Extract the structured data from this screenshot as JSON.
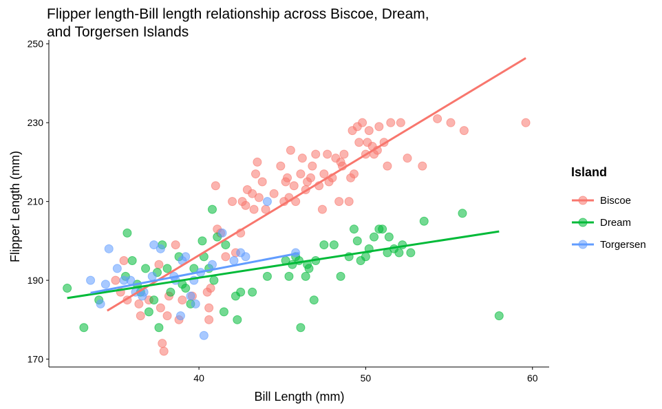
{
  "chart_data": {
    "type": "scatter",
    "title": "Flipper length-Bill length relationship across Biscoe, Dream,\n and Torgersen Islands",
    "xlabel": "Bill Length (mm)",
    "ylabel": "Flipper Length (mm)",
    "xlim": [
      31,
      61
    ],
    "ylim": [
      168,
      251
    ],
    "xticks": [
      40,
      50,
      60
    ],
    "yticks": [
      170,
      190,
      210,
      230,
      250
    ],
    "grid": false,
    "legend": {
      "title": "Island",
      "position": "right"
    },
    "series": [
      {
        "name": "Biscoe",
        "color": "#F8766D",
        "trend": [
          [
            34.5,
            182.3
          ],
          [
            59.6,
            246.4
          ]
        ],
        "points": [
          [
            35.0,
            190
          ],
          [
            35.3,
            187
          ],
          [
            35.5,
            195
          ],
          [
            35.7,
            185
          ],
          [
            36.4,
            184
          ],
          [
            36.5,
            181
          ],
          [
            37.0,
            185
          ],
          [
            37.6,
            194
          ],
          [
            37.7,
            183
          ],
          [
            37.8,
            174
          ],
          [
            37.9,
            172
          ],
          [
            38.1,
            181
          ],
          [
            38.2,
            186
          ],
          [
            38.6,
            199
          ],
          [
            38.8,
            180
          ],
          [
            39.0,
            185
          ],
          [
            39.6,
            186
          ],
          [
            40.5,
            187
          ],
          [
            40.6,
            183
          ],
          [
            40.6,
            180
          ],
          [
            40.7,
            188
          ],
          [
            41.0,
            214
          ],
          [
            41.1,
            203
          ],
          [
            41.3,
            202
          ],
          [
            41.6,
            196
          ],
          [
            42.0,
            210
          ],
          [
            42.2,
            197
          ],
          [
            42.5,
            202
          ],
          [
            42.6,
            210
          ],
          [
            42.8,
            209
          ],
          [
            42.9,
            213
          ],
          [
            43.2,
            212
          ],
          [
            43.3,
            208
          ],
          [
            43.5,
            220
          ],
          [
            43.4,
            217
          ],
          [
            43.6,
            211
          ],
          [
            43.8,
            215
          ],
          [
            44.0,
            208
          ],
          [
            44.5,
            212
          ],
          [
            44.9,
            219
          ],
          [
            45.1,
            210
          ],
          [
            45.2,
            215
          ],
          [
            45.3,
            216
          ],
          [
            45.4,
            211
          ],
          [
            45.5,
            223
          ],
          [
            45.7,
            214
          ],
          [
            45.8,
            210
          ],
          [
            46.1,
            217
          ],
          [
            46.2,
            221
          ],
          [
            46.4,
            213
          ],
          [
            46.5,
            215
          ],
          [
            46.7,
            216
          ],
          [
            46.8,
            219
          ],
          [
            47.0,
            222
          ],
          [
            47.2,
            214
          ],
          [
            47.4,
            208
          ],
          [
            47.5,
            217
          ],
          [
            47.7,
            222
          ],
          [
            47.8,
            215
          ],
          [
            48.0,
            216
          ],
          [
            48.2,
            221
          ],
          [
            48.4,
            210
          ],
          [
            48.5,
            220
          ],
          [
            48.6,
            219
          ],
          [
            48.7,
            222
          ],
          [
            49.0,
            210
          ],
          [
            49.1,
            216
          ],
          [
            49.2,
            228
          ],
          [
            49.3,
            217
          ],
          [
            49.5,
            229
          ],
          [
            49.6,
            225
          ],
          [
            49.8,
            230
          ],
          [
            50.0,
            222
          ],
          [
            50.1,
            225
          ],
          [
            50.2,
            228
          ],
          [
            50.4,
            224
          ],
          [
            50.5,
            222
          ],
          [
            50.7,
            223
          ],
          [
            50.8,
            229
          ],
          [
            51.1,
            225
          ],
          [
            51.3,
            219
          ],
          [
            51.5,
            230
          ],
          [
            52.1,
            230
          ],
          [
            52.5,
            221
          ],
          [
            53.4,
            219
          ],
          [
            54.3,
            231
          ],
          [
            55.1,
            230
          ],
          [
            55.9,
            228
          ],
          [
            59.6,
            230
          ]
        ]
      },
      {
        "name": "Dream",
        "color": "#00BA38",
        "trend": [
          [
            32.1,
            185.5
          ],
          [
            58.0,
            202.4
          ]
        ],
        "points": [
          [
            32.1,
            188
          ],
          [
            33.1,
            178
          ],
          [
            34.0,
            185
          ],
          [
            35.6,
            191
          ],
          [
            35.7,
            202
          ],
          [
            36.0,
            195
          ],
          [
            36.3,
            189
          ],
          [
            36.5,
            187
          ],
          [
            36.8,
            193
          ],
          [
            37.0,
            182
          ],
          [
            37.3,
            185
          ],
          [
            37.5,
            192
          ],
          [
            37.6,
            178
          ],
          [
            37.8,
            199
          ],
          [
            38.1,
            193
          ],
          [
            38.3,
            187
          ],
          [
            38.8,
            196
          ],
          [
            39.0,
            189
          ],
          [
            39.2,
            188
          ],
          [
            39.5,
            184
          ],
          [
            39.7,
            193
          ],
          [
            40.2,
            200
          ],
          [
            40.3,
            196
          ],
          [
            40.6,
            193
          ],
          [
            40.8,
            208
          ],
          [
            40.9,
            190
          ],
          [
            41.1,
            201
          ],
          [
            41.5,
            182
          ],
          [
            41.6,
            199
          ],
          [
            42.2,
            186
          ],
          [
            42.3,
            180
          ],
          [
            42.5,
            187
          ],
          [
            43.2,
            187
          ],
          [
            44.1,
            191
          ],
          [
            45.2,
            195
          ],
          [
            45.4,
            191
          ],
          [
            45.6,
            194
          ],
          [
            45.8,
            196
          ],
          [
            46.0,
            195
          ],
          [
            46.1,
            178
          ],
          [
            46.4,
            191
          ],
          [
            46.5,
            194
          ],
          [
            46.6,
            193
          ],
          [
            46.9,
            185
          ],
          [
            47.0,
            195
          ],
          [
            47.5,
            199
          ],
          [
            48.1,
            199
          ],
          [
            48.5,
            191
          ],
          [
            49.0,
            196
          ],
          [
            49.3,
            203
          ],
          [
            49.5,
            200
          ],
          [
            49.7,
            195
          ],
          [
            50.0,
            196
          ],
          [
            50.2,
            198
          ],
          [
            50.5,
            201
          ],
          [
            50.8,
            203
          ],
          [
            51.0,
            203
          ],
          [
            51.3,
            197
          ],
          [
            51.4,
            201
          ],
          [
            51.7,
            198
          ],
          [
            52.0,
            197
          ],
          [
            52.2,
            199
          ],
          [
            52.7,
            197
          ],
          [
            53.5,
            205
          ],
          [
            55.8,
            207
          ],
          [
            58.0,
            181
          ]
        ]
      },
      {
        "name": "Torgersen",
        "color": "#619CFF",
        "trend": [
          [
            33.5,
            186.8
          ],
          [
            46.0,
            196.9
          ]
        ],
        "points": [
          [
            33.5,
            190
          ],
          [
            34.1,
            184
          ],
          [
            34.4,
            189
          ],
          [
            34.6,
            198
          ],
          [
            35.1,
            193
          ],
          [
            35.5,
            190
          ],
          [
            35.9,
            190
          ],
          [
            36.2,
            187
          ],
          [
            36.6,
            186
          ],
          [
            36.7,
            187
          ],
          [
            37.2,
            191
          ],
          [
            37.3,
            199
          ],
          [
            37.7,
            198
          ],
          [
            38.5,
            191
          ],
          [
            38.6,
            190
          ],
          [
            38.9,
            181
          ],
          [
            39.0,
            195
          ],
          [
            39.2,
            196
          ],
          [
            39.5,
            186
          ],
          [
            39.7,
            190
          ],
          [
            39.8,
            184
          ],
          [
            40.1,
            192
          ],
          [
            40.3,
            176
          ],
          [
            40.8,
            194
          ],
          [
            41.4,
            202
          ],
          [
            42.1,
            195
          ],
          [
            42.5,
            197
          ],
          [
            42.8,
            196
          ],
          [
            44.1,
            210
          ],
          [
            45.8,
            197
          ]
        ]
      }
    ]
  }
}
